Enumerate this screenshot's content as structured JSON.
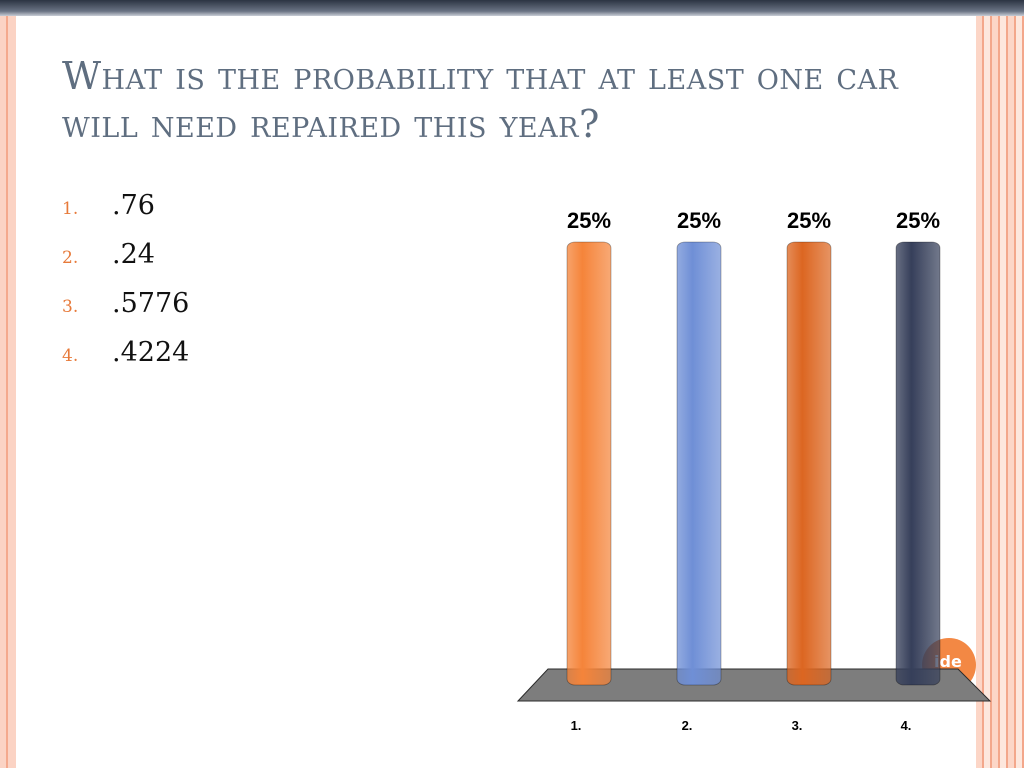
{
  "slide": {
    "title": "What is the probability that at least one car will need repaired this year?",
    "answers": [
      {
        "number": "1.",
        "text": ".76"
      },
      {
        "number": "2.",
        "text": ".24"
      },
      {
        "number": "3.",
        "text": ".5776"
      },
      {
        "number": "4.",
        "text": ".4224"
      }
    ],
    "badge_text": "ide"
  },
  "colors": {
    "title": "#5f6e80",
    "answer_number": "#e77a3a",
    "bars": [
      "#f5843a",
      "#6f8fd6",
      "#dc6621",
      "#363f5a"
    ],
    "floor": "#7d7d7d"
  },
  "chart_data": {
    "type": "bar",
    "categories": [
      "1.",
      "2.",
      "3.",
      "4."
    ],
    "values": [
      25,
      25,
      25,
      25
    ],
    "data_labels": [
      "25%",
      "25%",
      "25%",
      "25%"
    ],
    "ylim": [
      0,
      25
    ],
    "grid": false,
    "legend": "none"
  }
}
